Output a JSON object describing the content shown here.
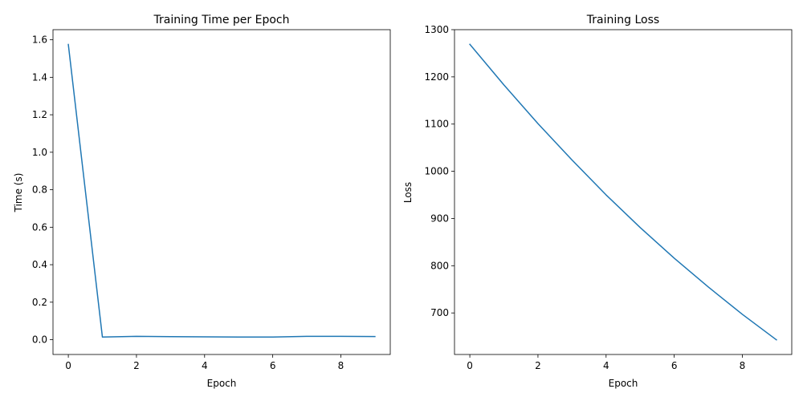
{
  "chart_data": [
    {
      "type": "line",
      "title": "Training Time per Epoch",
      "xlabel": "Epoch",
      "ylabel": "Time (s)",
      "xlim": [
        -0.45,
        9.45
      ],
      "ylim": [
        -0.079,
        1.654
      ],
      "xticks": [
        0,
        2,
        4,
        6,
        8
      ],
      "yticks": [
        0.0,
        0.2,
        0.4,
        0.6,
        0.8,
        1.0,
        1.2,
        1.4,
        1.6
      ],
      "grid": false,
      "color": "#1f77b4",
      "x": [
        0,
        1,
        2,
        3,
        4,
        5,
        6,
        7,
        8,
        9
      ],
      "y": [
        1.575,
        0.014,
        0.018,
        0.016,
        0.015,
        0.014,
        0.014,
        0.018,
        0.018,
        0.017
      ]
    },
    {
      "type": "line",
      "title": "Training Loss",
      "xlabel": "Epoch",
      "ylabel": "Loss",
      "xlim": [
        -0.45,
        9.45
      ],
      "ylim": [
        612,
        1300
      ],
      "xticks": [
        0,
        2,
        4,
        6,
        8
      ],
      "yticks": [
        700,
        800,
        900,
        1000,
        1100,
        1200,
        1300
      ],
      "grid": false,
      "color": "#1f77b4",
      "x": [
        0,
        1,
        2,
        3,
        4,
        5,
        6,
        7,
        8,
        9
      ],
      "y": [
        1269,
        1183,
        1101,
        1024,
        950,
        881,
        816,
        755,
        697,
        643
      ]
    }
  ]
}
